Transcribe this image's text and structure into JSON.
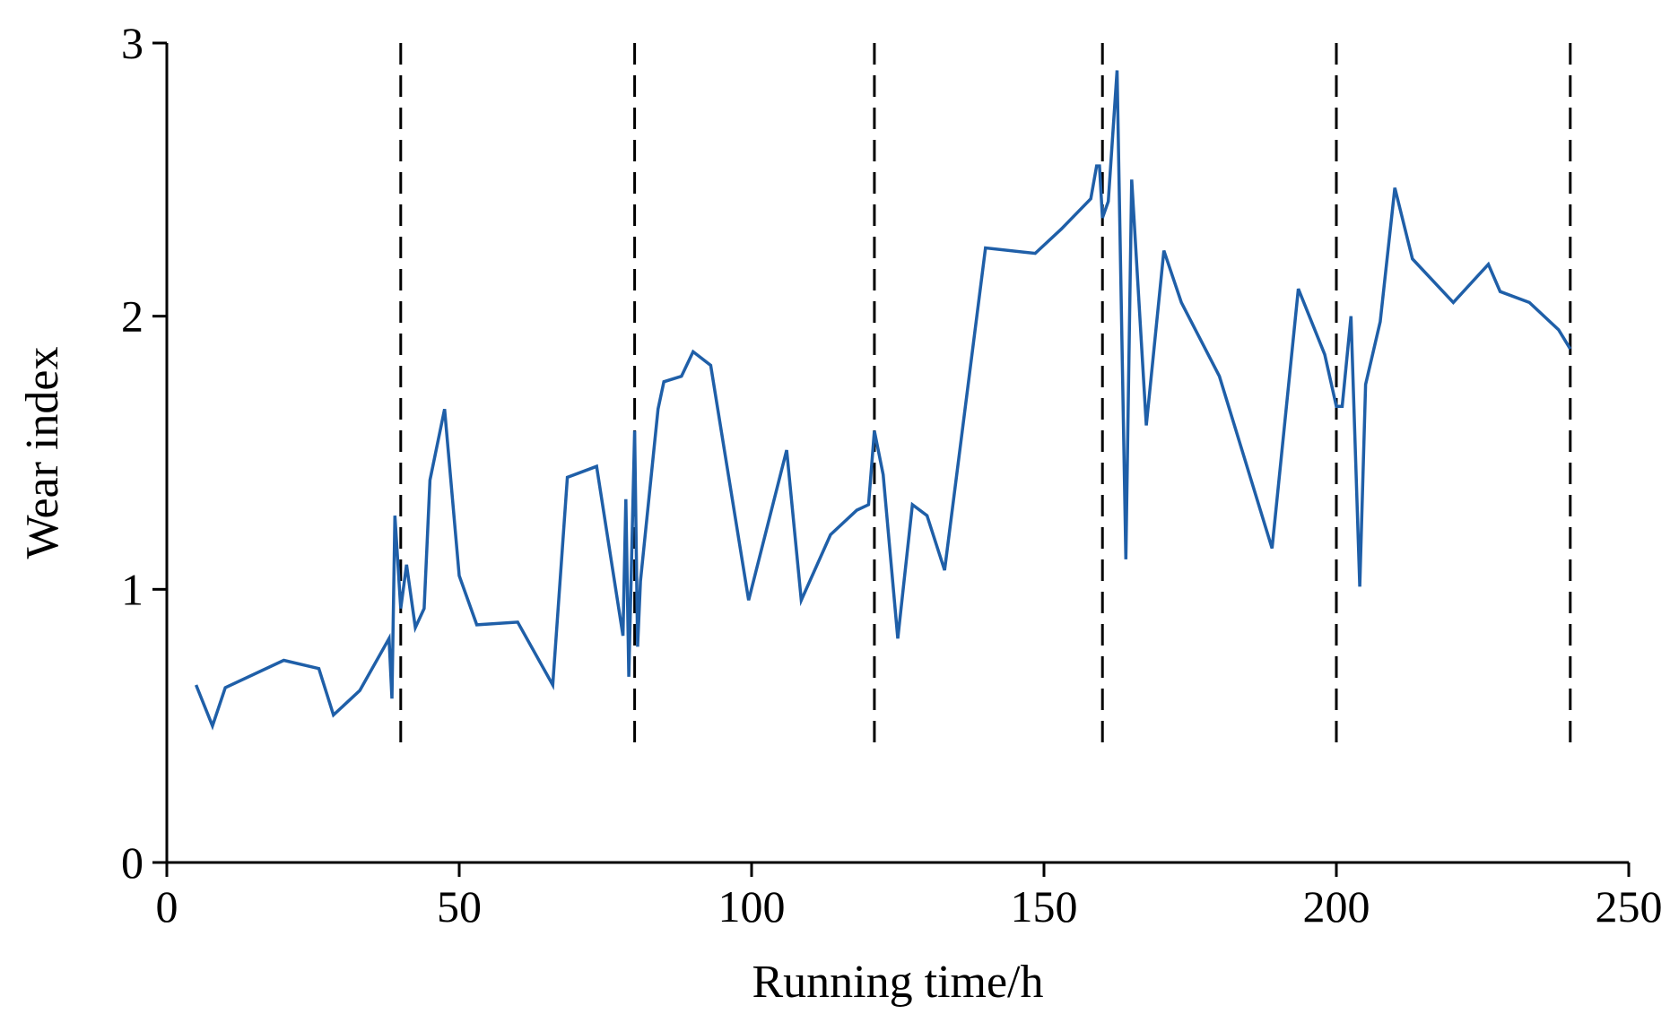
{
  "chart_data": {
    "type": "line",
    "title": "",
    "xlabel": "Running time/h",
    "ylabel": "Wear index",
    "xlim": [
      0,
      250
    ],
    "ylim": [
      0,
      3
    ],
    "xticks": [
      0,
      50,
      100,
      150,
      200,
      250
    ],
    "yticks": [
      0,
      1,
      2,
      3
    ],
    "grid": false,
    "legend": "none",
    "vlines": [
      40,
      80,
      121,
      160,
      200,
      240
    ],
    "series": [
      {
        "color": "#1f5fa8",
        "x": [
          5,
          7.8,
          10,
          20,
          26,
          28.5,
          33,
          38,
          38.5,
          39,
          40,
          41,
          42.5,
          44,
          45,
          47.5,
          50,
          53,
          60,
          66,
          68.5,
          73.5,
          78,
          78.5,
          79,
          80,
          80.5,
          81,
          84,
          85,
          88,
          90,
          93,
          99.5,
          106,
          108.5,
          113.5,
          118,
          120,
          121,
          122.5,
          125,
          127.5,
          130,
          133,
          140,
          148.5,
          153,
          158,
          159,
          159.5,
          160,
          161,
          162.5,
          164,
          165,
          167.5,
          170.5,
          173.5,
          180,
          189,
          193.5,
          198,
          200,
          201,
          202.5,
          204,
          205,
          207.5,
          210,
          213,
          220,
          226,
          228,
          233,
          238,
          240
        ],
        "y": [
          0.65,
          0.5,
          0.64,
          0.74,
          0.71,
          0.54,
          0.63,
          0.82,
          0.6,
          1.27,
          0.93,
          1.09,
          0.86,
          0.93,
          1.4,
          1.66,
          1.05,
          0.87,
          0.88,
          0.65,
          1.41,
          1.45,
          0.83,
          1.33,
          0.68,
          1.58,
          0.79,
          1.03,
          1.66,
          1.76,
          1.78,
          1.87,
          1.82,
          0.96,
          1.51,
          0.96,
          1.2,
          1.29,
          1.31,
          1.58,
          1.42,
          0.82,
          1.31,
          1.27,
          1.07,
          2.25,
          2.23,
          2.32,
          2.43,
          2.55,
          2.55,
          2.36,
          2.42,
          2.9,
          1.11,
          2.5,
          1.6,
          2.24,
          2.05,
          1.78,
          1.15,
          2.1,
          1.86,
          1.67,
          1.67,
          2.0,
          1.01,
          1.75,
          1.98,
          2.47,
          2.21,
          2.05,
          2.19,
          2.09,
          2.05,
          1.95,
          1.88
        ]
      }
    ]
  }
}
